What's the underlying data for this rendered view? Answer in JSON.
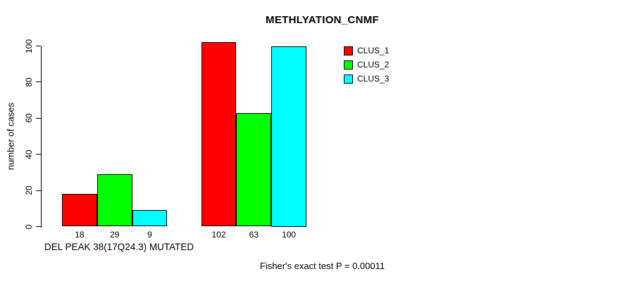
{
  "chart_data": {
    "type": "bar",
    "title": "METHLYATION_CNMF",
    "ylabel": "number of cases",
    "xlabel": "DEL PEAK 38(17Q24.3) MUTATED",
    "footnote": "Fisher's exact test P = 0.00011",
    "ylim": [
      0,
      102
    ],
    "yticks": [
      0,
      20,
      40,
      60,
      80,
      100
    ],
    "grid": false,
    "legend_position": "top-right",
    "bar_value_labels_shown": true,
    "series": [
      {
        "name": "CLUS_1",
        "color": "#ff0000",
        "values": [
          18,
          102
        ]
      },
      {
        "name": "CLUS_2",
        "color": "#00ff00",
        "values": [
          29,
          63
        ]
      },
      {
        "name": "CLUS_3",
        "color": "#00ffff",
        "values": [
          9,
          100
        ]
      }
    ]
  },
  "colors": {
    "background": "#ffffff",
    "bar_border": "#000000",
    "axis": "#000000",
    "text": "#000000"
  }
}
